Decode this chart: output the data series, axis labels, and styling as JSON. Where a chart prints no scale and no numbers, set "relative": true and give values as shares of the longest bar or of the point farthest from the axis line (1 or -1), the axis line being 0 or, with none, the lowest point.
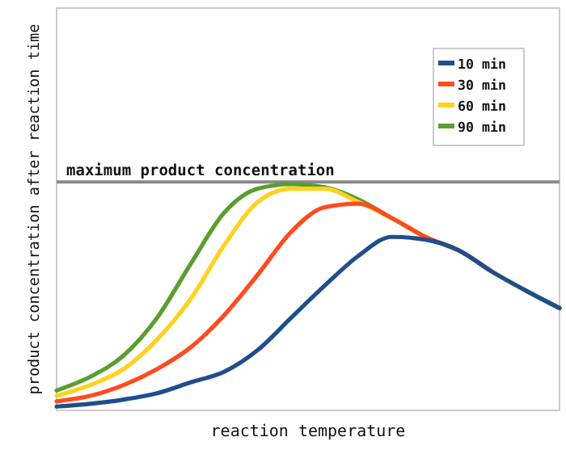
{
  "chart_data": {
    "type": "line",
    "relative": true,
    "xlabel": "reaction temperature",
    "ylabel": "product concentration after reaction time",
    "legend": "top right",
    "line_style": "solid",
    "marker": "none",
    "categories": [
      null,
      null,
      null,
      null,
      null,
      null,
      null,
      null,
      null,
      null,
      null,
      null,
      null,
      null,
      null,
      null
    ],
    "series": [
      {
        "name": "10 min",
        "color": "#1f4e8c",
        "values": [
          0.017,
          0.029,
          0.048,
          0.076,
          0.124,
          0.171,
          0.267,
          0.41,
          0.552,
          0.683,
          0.767,
          0.755,
          0.707,
          0.612,
          0.529,
          0.452
        ]
      },
      {
        "name": "30 min",
        "color": "#ff4b1f",
        "values": [
          0.04,
          0.064,
          0.112,
          0.183,
          0.279,
          0.421,
          0.6,
          0.79,
          0.898,
          0.914,
          0.85,
          0.767,
          0.707,
          0.612,
          null,
          null
        ]
      },
      {
        "name": "60 min",
        "color": "#ffd21f",
        "values": [
          0.064,
          0.112,
          0.183,
          0.314,
          0.493,
          0.731,
          0.921,
          0.98,
          0.98,
          0.921,
          0.85,
          0.767,
          0.707,
          null,
          null,
          null
        ]
      },
      {
        "name": "90 min",
        "color": "#5a9e2f",
        "values": [
          0.088,
          0.148,
          0.243,
          0.41,
          0.648,
          0.874,
          0.98,
          1,
          0.986,
          0.933,
          0.85,
          0.767,
          0.707,
          0.612,
          0.529,
          0.452
        ]
      }
    ],
    "ref_lines": [
      {
        "axis": "y",
        "value": 1.01,
        "label": "maximum product concentration",
        "color": "#888888"
      }
    ]
  }
}
